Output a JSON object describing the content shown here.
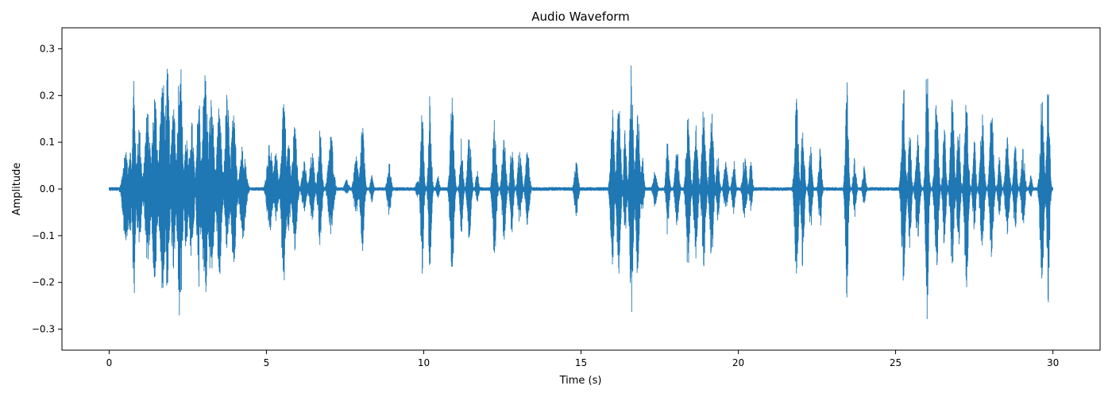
{
  "chart_data": {
    "type": "line",
    "title": "Audio Waveform",
    "xlabel": "Time (s)",
    "ylabel": "Amplitude",
    "xlim": [
      -1.5,
      31.5
    ],
    "ylim": [
      -0.345,
      0.345
    ],
    "x_ticks": [
      0,
      5,
      10,
      15,
      20,
      25,
      30
    ],
    "y_ticks": [
      -0.3,
      -0.2,
      -0.1,
      0.0,
      0.1,
      0.2,
      0.3
    ],
    "x_tick_labels": [
      "0",
      "5",
      "10",
      "15",
      "20",
      "25",
      "30"
    ],
    "y_tick_labels": [
      "−0.3",
      "−0.2",
      "−0.1",
      "0.0",
      "0.1",
      "0.2",
      "0.3"
    ],
    "grid": false,
    "line_color": "#1f77b4",
    "duration_s": 30,
    "noise_floor": 0.004,
    "bursts": [
      [
        0.53,
        0.16,
        0.08,
        -0.12
      ],
      [
        0.66,
        0.1,
        0.09,
        -0.1
      ],
      [
        0.79,
        0.07,
        0.27,
        -0.27
      ],
      [
        0.95,
        0.12,
        0.14,
        -0.13
      ],
      [
        1.22,
        0.15,
        0.17,
        -0.16
      ],
      [
        1.45,
        0.14,
        0.21,
        -0.2
      ],
      [
        1.7,
        0.16,
        0.24,
        -0.22
      ],
      [
        1.85,
        0.12,
        0.26,
        -0.22
      ],
      [
        2.05,
        0.12,
        0.2,
        -0.18
      ],
      [
        2.25,
        0.12,
        0.31,
        -0.31
      ],
      [
        2.45,
        0.1,
        0.12,
        -0.14
      ],
      [
        2.62,
        0.12,
        0.15,
        -0.16
      ],
      [
        2.85,
        0.1,
        0.21,
        -0.23
      ],
      [
        3.05,
        0.14,
        0.26,
        -0.25
      ],
      [
        3.25,
        0.14,
        0.2,
        -0.21
      ],
      [
        3.5,
        0.12,
        0.18,
        -0.2
      ],
      [
        3.75,
        0.12,
        0.21,
        -0.14
      ],
      [
        3.95,
        0.14,
        0.16,
        -0.18
      ],
      [
        4.25,
        0.16,
        0.1,
        -0.11
      ],
      [
        5.1,
        0.14,
        0.11,
        -0.1
      ],
      [
        5.3,
        0.12,
        0.08,
        -0.07
      ],
      [
        5.55,
        0.12,
        0.21,
        -0.21
      ],
      [
        5.7,
        0.1,
        0.11,
        -0.1
      ],
      [
        5.9,
        0.12,
        0.14,
        -0.14
      ],
      [
        6.2,
        0.12,
        0.06,
        -0.05
      ],
      [
        6.45,
        0.12,
        0.08,
        -0.07
      ],
      [
        6.7,
        0.1,
        0.13,
        -0.13
      ],
      [
        7.05,
        0.14,
        0.12,
        -0.1
      ],
      [
        7.55,
        0.12,
        0.02,
        -0.01
      ],
      [
        7.85,
        0.12,
        0.07,
        -0.06
      ],
      [
        8.05,
        0.1,
        0.15,
        -0.14
      ],
      [
        8.35,
        0.08,
        0.03,
        -0.03
      ],
      [
        8.9,
        0.1,
        0.06,
        -0.06
      ],
      [
        9.8,
        0.08,
        0.02,
        -0.02
      ],
      [
        9.95,
        0.08,
        0.19,
        -0.19
      ],
      [
        10.2,
        0.08,
        0.22,
        -0.2
      ],
      [
        10.45,
        0.08,
        0.03,
        -0.02
      ],
      [
        10.9,
        0.1,
        0.22,
        -0.22
      ],
      [
        11.2,
        0.08,
        0.11,
        -0.1
      ],
      [
        11.45,
        0.1,
        0.13,
        -0.12
      ],
      [
        11.7,
        0.08,
        0.04,
        -0.03
      ],
      [
        12.25,
        0.1,
        0.15,
        -0.15
      ],
      [
        12.55,
        0.1,
        0.12,
        -0.11
      ],
      [
        12.8,
        0.08,
        0.11,
        -0.1
      ],
      [
        13.05,
        0.1,
        0.09,
        -0.08
      ],
      [
        13.3,
        0.1,
        0.09,
        -0.08
      ],
      [
        14.85,
        0.1,
        0.06,
        -0.06
      ],
      [
        16.0,
        0.1,
        0.17,
        -0.17
      ],
      [
        16.2,
        0.1,
        0.22,
        -0.19
      ],
      [
        16.4,
        0.08,
        0.13,
        -0.12
      ],
      [
        16.6,
        0.1,
        0.27,
        -0.27
      ],
      [
        16.8,
        0.1,
        0.2,
        -0.19
      ],
      [
        16.95,
        0.08,
        0.07,
        -0.06
      ],
      [
        17.35,
        0.1,
        0.04,
        -0.04
      ],
      [
        17.75,
        0.08,
        0.11,
        -0.1
      ],
      [
        18.05,
        0.1,
        0.09,
        -0.08
      ],
      [
        18.4,
        0.1,
        0.19,
        -0.18
      ],
      [
        18.65,
        0.1,
        0.14,
        -0.16
      ],
      [
        18.9,
        0.1,
        0.2,
        -0.17
      ],
      [
        19.15,
        0.1,
        0.18,
        -0.16
      ],
      [
        19.35,
        0.08,
        0.08,
        -0.07
      ],
      [
        19.6,
        0.1,
        0.06,
        -0.05
      ],
      [
        19.85,
        0.08,
        0.07,
        -0.06
      ],
      [
        20.2,
        0.1,
        0.08,
        -0.07
      ],
      [
        20.4,
        0.08,
        0.06,
        -0.05
      ],
      [
        21.85,
        0.1,
        0.21,
        -0.21
      ],
      [
        22.05,
        0.08,
        0.17,
        -0.18
      ],
      [
        22.3,
        0.08,
        0.11,
        -0.1
      ],
      [
        22.6,
        0.08,
        0.09,
        -0.09
      ],
      [
        23.45,
        0.08,
        0.24,
        -0.24
      ],
      [
        23.7,
        0.08,
        0.07,
        -0.06
      ],
      [
        24.0,
        0.08,
        0.05,
        -0.04
      ],
      [
        25.25,
        0.1,
        0.23,
        -0.23
      ],
      [
        25.45,
        0.08,
        0.14,
        -0.13
      ],
      [
        25.7,
        0.1,
        0.12,
        -0.12
      ],
      [
        26.0,
        0.08,
        0.29,
        -0.29
      ],
      [
        26.3,
        0.1,
        0.2,
        -0.18
      ],
      [
        26.55,
        0.08,
        0.14,
        -0.13
      ],
      [
        26.8,
        0.1,
        0.2,
        -0.19
      ],
      [
        27.0,
        0.08,
        0.17,
        -0.14
      ],
      [
        27.25,
        0.1,
        0.22,
        -0.22
      ],
      [
        27.5,
        0.08,
        0.11,
        -0.09
      ],
      [
        27.75,
        0.1,
        0.17,
        -0.16
      ],
      [
        28.05,
        0.1,
        0.18,
        -0.15
      ],
      [
        28.3,
        0.08,
        0.07,
        -0.06
      ],
      [
        28.55,
        0.1,
        0.12,
        -0.11
      ],
      [
        28.8,
        0.08,
        0.11,
        -0.1
      ],
      [
        29.05,
        0.1,
        0.09,
        -0.08
      ],
      [
        29.3,
        0.08,
        0.03,
        -0.02
      ],
      [
        29.65,
        0.1,
        0.21,
        -0.21
      ],
      [
        29.85,
        0.08,
        0.26,
        -0.25
      ]
    ]
  }
}
